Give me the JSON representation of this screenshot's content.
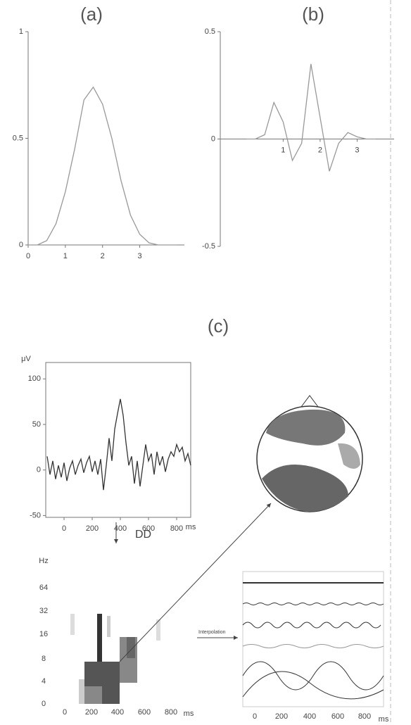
{
  "chart_data": [
    {
      "type": "line",
      "title": "(a)",
      "x": [
        0,
        0.25,
        0.5,
        0.75,
        1,
        1.25,
        1.5,
        1.75,
        2,
        2.25,
        2.5,
        2.75,
        3,
        3.25,
        3.5,
        3.75,
        4
      ],
      "values": [
        0,
        0,
        0.02,
        0.1,
        0.25,
        0.45,
        0.68,
        0.74,
        0.66,
        0.5,
        0.3,
        0.14,
        0.05,
        0.01,
        0,
        0,
        0
      ],
      "color": "#999999",
      "xlim": [
        0,
        4.2
      ],
      "ylim": [
        0,
        1
      ],
      "xticks": [
        0,
        1,
        2,
        3
      ],
      "yticks": [
        0,
        0.5,
        1
      ]
    },
    {
      "type": "line",
      "title": "(b)",
      "x": [
        0,
        0.25,
        0.5,
        0.75,
        1,
        1.25,
        1.5,
        1.75,
        2,
        2.25,
        2.5,
        2.75,
        3,
        3.25,
        3.5
      ],
      "values": [
        0,
        0,
        0.02,
        0.17,
        0.08,
        -0.1,
        -0.02,
        0.35,
        0.1,
        -0.15,
        -0.02,
        0.03,
        0.01,
        0,
        0
      ],
      "color": "#999999",
      "xlim": [
        -0.7,
        4
      ],
      "ylim": [
        -0.5,
        0.5
      ],
      "xticks": [
        1,
        2,
        3
      ],
      "yticks": [
        -0.5,
        0,
        0.5
      ]
    },
    {
      "type": "line",
      "y_label": "μV",
      "x_label": "ms",
      "x": [
        -120,
        -100,
        -80,
        -60,
        -40,
        -20,
        0,
        20,
        40,
        60,
        80,
        100,
        120,
        140,
        160,
        180,
        200,
        220,
        240,
        260,
        280,
        300,
        320,
        340,
        360,
        380,
        400,
        420,
        440,
        460,
        480,
        500,
        520,
        540,
        560,
        580,
        600,
        620,
        640,
        660,
        680,
        700,
        720,
        740,
        760,
        780,
        800,
        820,
        840,
        860,
        880,
        900
      ],
      "values": [
        15,
        -5,
        10,
        -10,
        5,
        -8,
        8,
        -12,
        2,
        10,
        -5,
        5,
        12,
        -3,
        8,
        15,
        -2,
        10,
        -5,
        12,
        -22,
        5,
        35,
        10,
        45,
        62,
        78,
        60,
        30,
        5,
        15,
        -15,
        10,
        -18,
        5,
        28,
        10,
        18,
        -5,
        20,
        5,
        15,
        -2,
        12,
        20,
        15,
        28,
        20,
        25,
        10,
        18,
        5
      ],
      "color": "#333333",
      "xlim": [
        -130,
        900
      ],
      "ylim": [
        -52,
        118
      ],
      "xticks": [
        0,
        200,
        400,
        600,
        800
      ],
      "yticks": [
        -50,
        0,
        50,
        100
      ]
    }
  ],
  "panel_c_label": "(c)",
  "dd_label": "DD",
  "interpolation_label": "Interpolation",
  "tf_plot": {
    "y_label": "Hz",
    "y_labels": [
      "64",
      "32",
      "16",
      "8",
      "4",
      "0"
    ],
    "x_labels": [
      "0",
      "200",
      "400",
      "600",
      "800"
    ],
    "x_unit": "ms"
  },
  "waves_plot": {
    "x_labels": [
      "0",
      "200",
      "400",
      "600",
      "800"
    ],
    "x_unit": "ms"
  }
}
